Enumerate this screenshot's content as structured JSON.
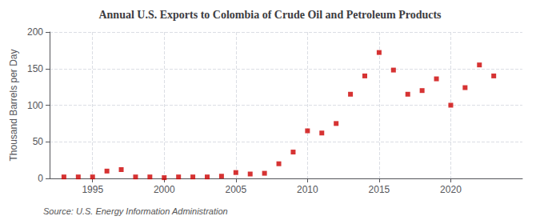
{
  "chart_data": {
    "type": "scatter",
    "title": "Annual U.S. Exports to Colombia of Crude Oil and Petroleum Products",
    "ylabel": "Thousand Barrels per Day",
    "source": "Source: U.S. Energy Information Administration",
    "x": [
      1993,
      1994,
      1995,
      1996,
      1997,
      1998,
      1999,
      2000,
      2001,
      2002,
      2003,
      2004,
      2005,
      2006,
      2007,
      2008,
      2009,
      2010,
      2011,
      2012,
      2013,
      2014,
      2015,
      2016,
      2017,
      2018,
      2019,
      2020,
      2021,
      2022,
      2023
    ],
    "values": [
      2,
      2,
      2,
      10,
      12,
      2,
      2,
      1,
      2,
      2,
      2,
      3,
      8,
      6,
      7,
      20,
      36,
      65,
      62,
      75,
      115,
      140,
      172,
      148,
      115,
      120,
      136,
      100,
      124,
      155,
      140
    ],
    "color": "#cc0000",
    "marker": "square",
    "xlim": [
      1992,
      2025
    ],
    "xticks": [
      1995,
      2000,
      2005,
      2010,
      2015,
      2020
    ],
    "ylim": [
      0,
      200
    ],
    "yticks": [
      0,
      50,
      100,
      150,
      200
    ],
    "grid": true
  }
}
